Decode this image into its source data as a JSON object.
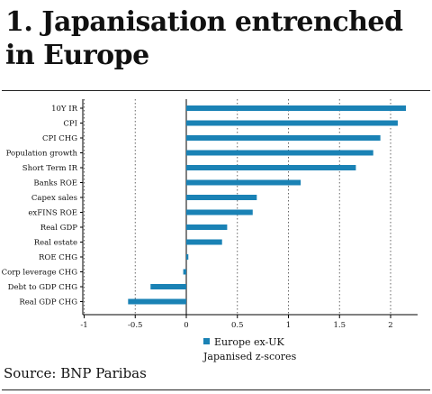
{
  "title": "1. Japanisation entrenched in Europe",
  "source": "Source: BNP Paribas",
  "colors": {
    "bar": "#1a82b5",
    "axis": "#000000",
    "grid": "#555555"
  },
  "legend": {
    "label_line1": "Europe ex-UK",
    "label_line2": "Japanised z-scores",
    "position": "bottom"
  },
  "chart_data": {
    "type": "bar",
    "orientation": "horizontal",
    "categories": [
      "10Y IR",
      "CPI",
      "CPI CHG",
      "Population growth",
      "Short Term IR",
      "Banks ROE",
      "Capex sales",
      "exFINS ROE",
      "Real GDP",
      "Real estate",
      "ROE CHG",
      "Corp leverage CHG",
      "Debt to GDP CHG",
      "Real GDP CHG"
    ],
    "series": [
      {
        "name": "Europe ex-UK Japanised z-scores",
        "values": [
          2.15,
          2.07,
          1.9,
          1.83,
          1.66,
          1.12,
          0.69,
          0.65,
          0.4,
          0.35,
          0.02,
          -0.03,
          -0.35,
          -0.57
        ]
      }
    ],
    "xlim": [
      -1,
      2.2
    ],
    "xticks": [
      -1,
      -0.5,
      0,
      0.5,
      1,
      1.5,
      2
    ],
    "xtick_labels": [
      "-1",
      "-0.5",
      "0",
      "0.5",
      "1",
      "1.5",
      "2"
    ],
    "grid": "vertical dotted",
    "xlabel": "",
    "ylabel": ""
  }
}
